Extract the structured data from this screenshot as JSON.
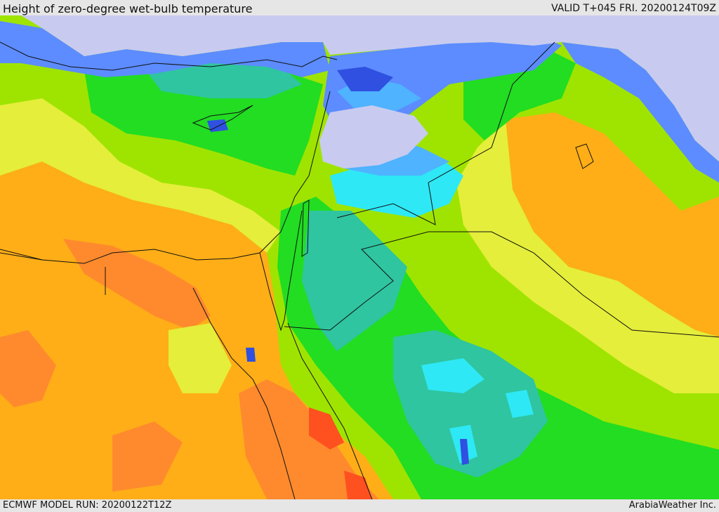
{
  "header": {
    "title": "Height of zero-degree wet-bulb temperature",
    "valid": "VALID T+045 FRI. 20200124T09Z"
  },
  "footer": {
    "model_run": "ECMWF MODEL RUN: 20200122T12Z",
    "credit": "ArabiaWeather Inc."
  },
  "colors": {
    "lowest": "#c8cbef",
    "deep_blue": "#2f50e0",
    "blue": "#5c8cff",
    "light_blue": "#4fb3ff",
    "cyan": "#2ee8f5",
    "teal": "#2fc5a0",
    "green": "#22dd22",
    "lime": "#9fe400",
    "yellow": "#e5ee3a",
    "orange": "#ffae17",
    "dark_orange": "#ff8a2d",
    "red_orange": "#ff5020",
    "border": "#111111"
  }
}
